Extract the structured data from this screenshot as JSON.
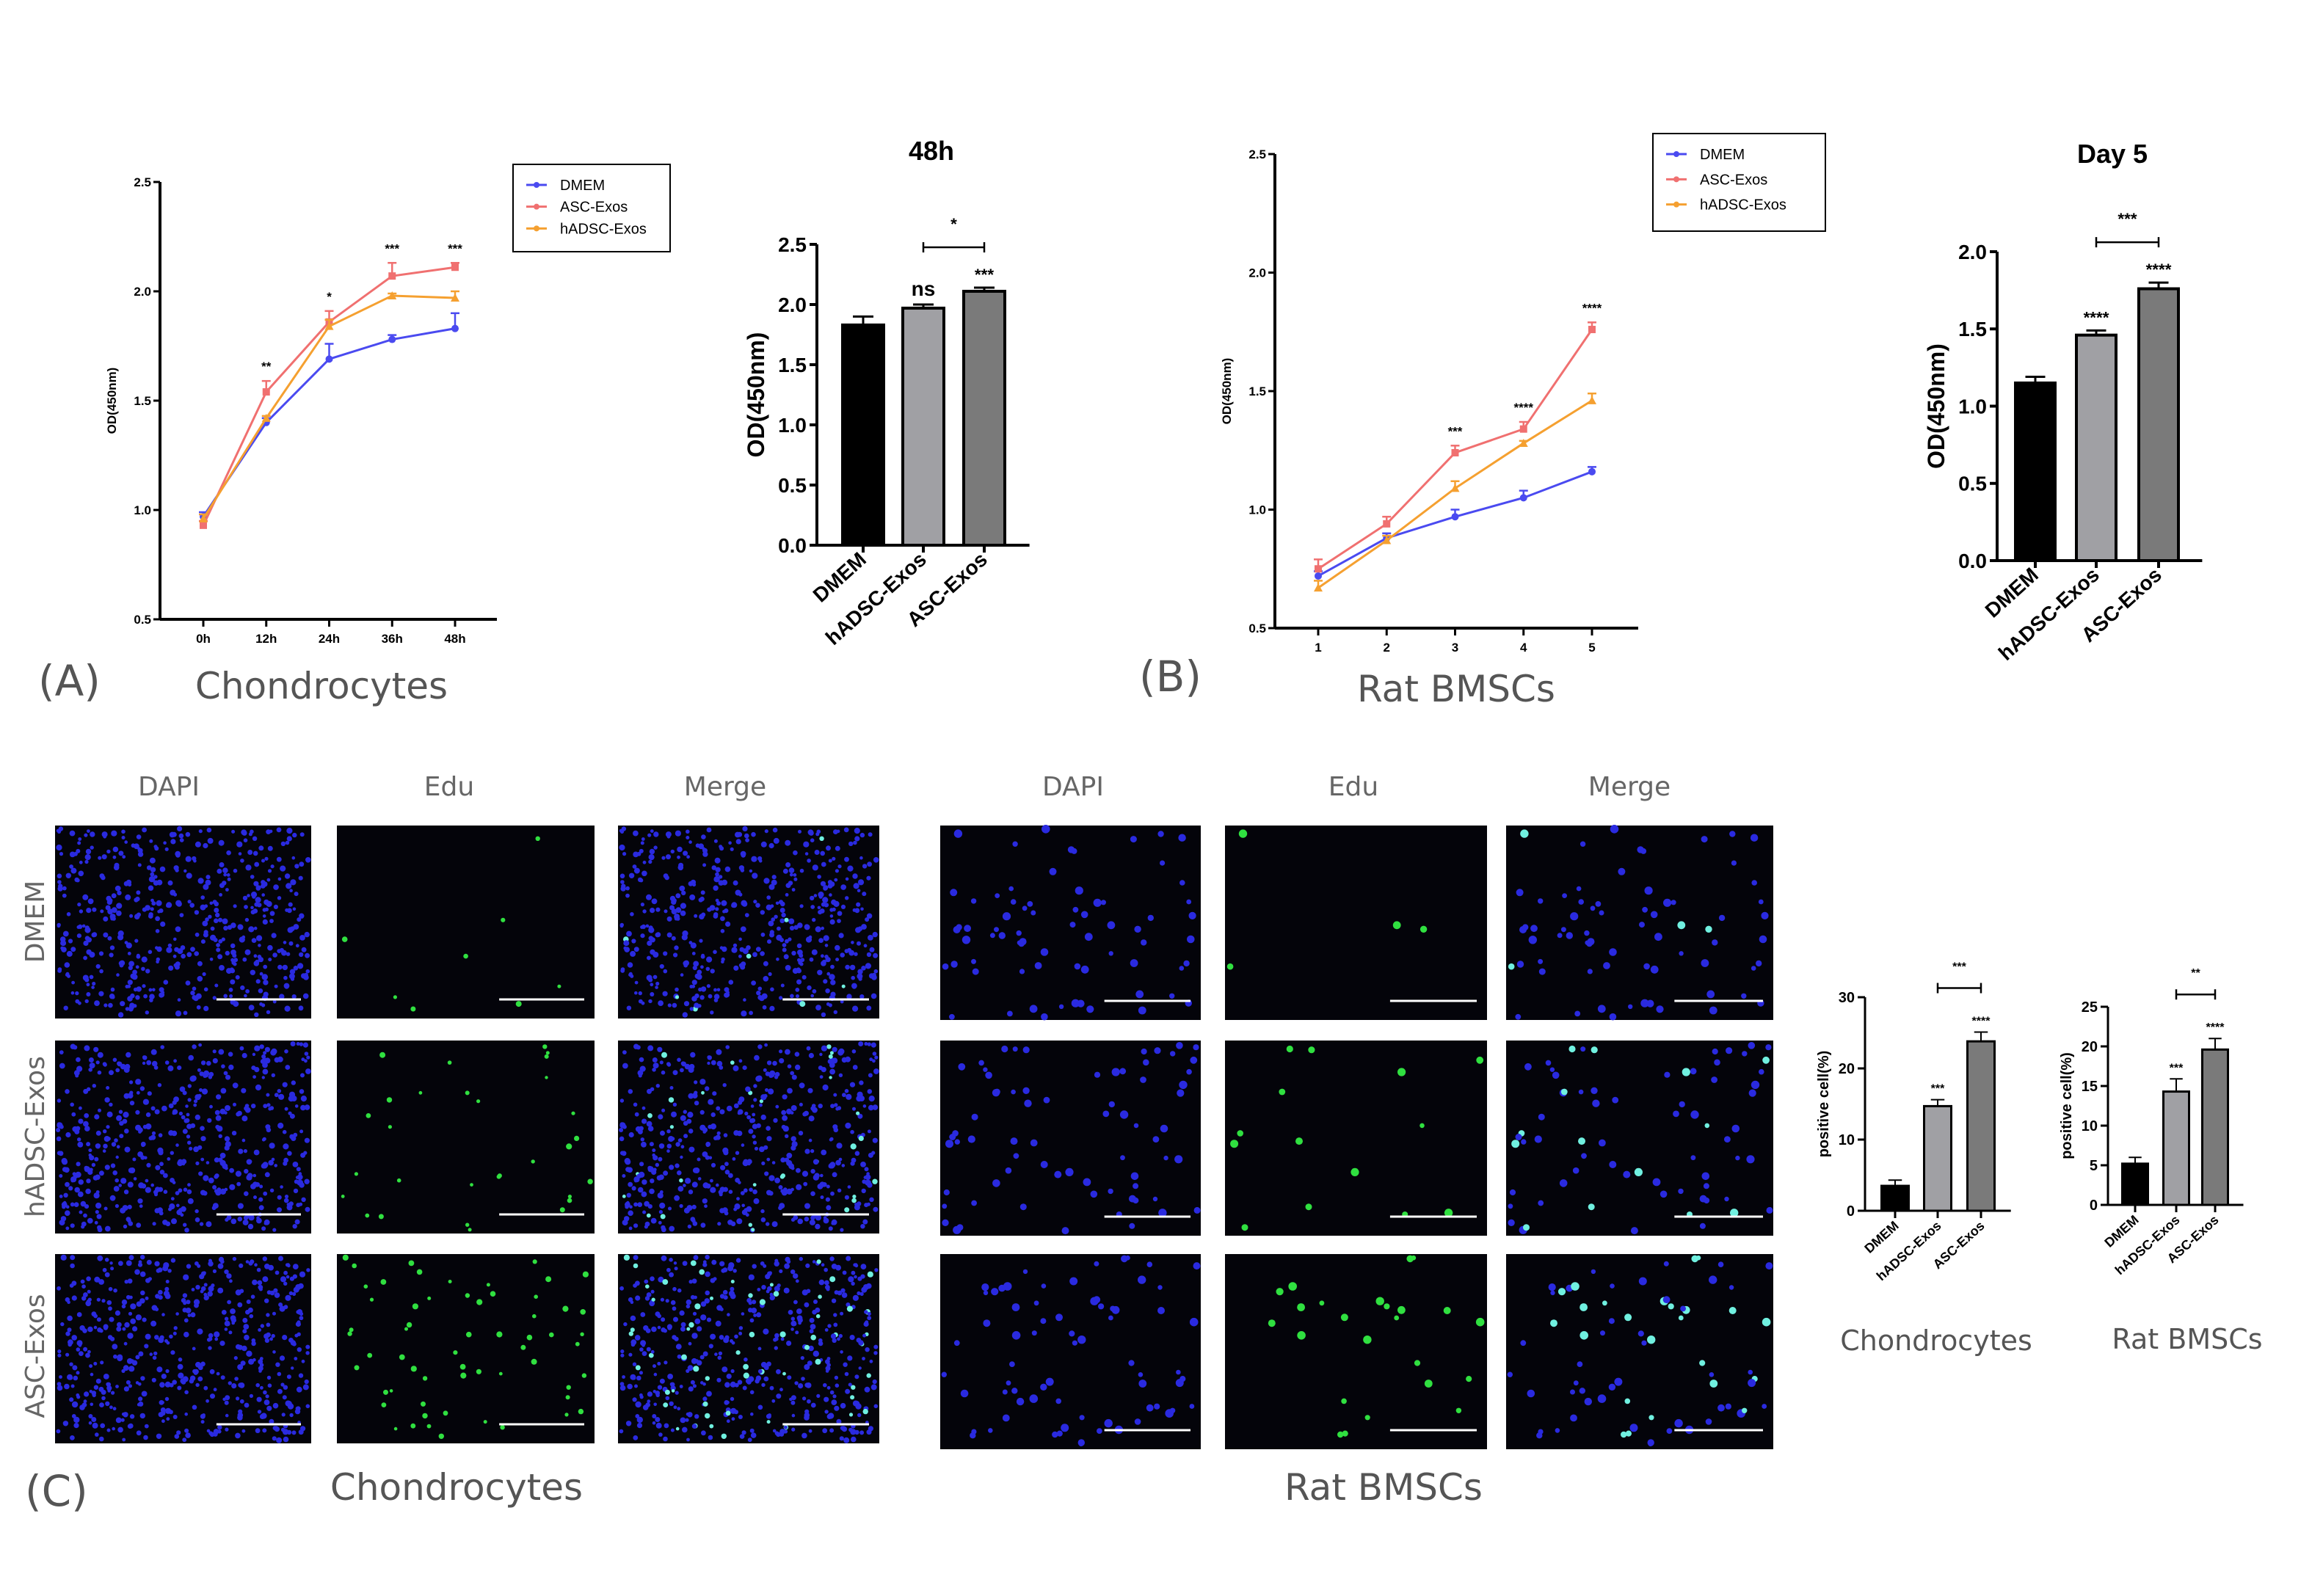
{
  "figure": {
    "panel_labels": [
      "(A)",
      "(B)",
      "(C)"
    ],
    "subtitles": {
      "a": "Chondrocytes",
      "b": "Rat BMSCs",
      "c_left": "Chondrocytes",
      "c_right": "Rat BMSCs",
      "c_bar_left": "Chondrocytes",
      "c_bar_right": "Rat BMSCs"
    },
    "column_headers": [
      "DAPI",
      "Edu",
      "Merge"
    ],
    "row_labels": [
      "DMEM",
      "hADSC-Exos",
      "ASC-Exos"
    ]
  },
  "chart_data": [
    {
      "type": "line",
      "xlabel": "",
      "ylabel": "OD(450nm)",
      "x": [
        "0h",
        "12h",
        "24h",
        "36h",
        "48h"
      ],
      "ylim": [
        0.5,
        2.5
      ],
      "yticks": [
        0.5,
        1.0,
        1.5,
        2.0,
        2.5
      ],
      "ytick_labels": [
        "0.5",
        "1.0",
        "1.5",
        "2.0",
        "2.5"
      ],
      "legend_position": "top-right",
      "series": [
        {
          "name": "DMEM",
          "color": "#4a4af0",
          "marker": "circle",
          "values": [
            0.97,
            1.4,
            1.69,
            1.78,
            1.83
          ],
          "errors": [
            0.02,
            0.02,
            0.07,
            0.02,
            0.07
          ]
        },
        {
          "name": "ASC-Exos",
          "color": "#f07070",
          "marker": "square",
          "values": [
            0.93,
            1.54,
            1.86,
            2.07,
            2.11
          ],
          "errors": [
            0.02,
            0.05,
            0.05,
            0.06,
            0.02
          ]
        },
        {
          "name": "hADSC-Exos",
          "color": "#f5a030",
          "marker": "triangle",
          "values": [
            0.96,
            1.42,
            1.84,
            1.98,
            1.97
          ],
          "errors": [
            0.02,
            0.01,
            0.03,
            0.01,
            0.03
          ]
        }
      ],
      "significance": [
        "",
        "**",
        "*",
        "***",
        "***"
      ]
    },
    {
      "type": "bar",
      "title": "48h",
      "ylabel": "OD(450nm)",
      "categories": [
        "DMEM",
        "hADSC-Exos",
        "ASC-Exos"
      ],
      "values": [
        1.83,
        1.97,
        2.11
      ],
      "errors": [
        0.07,
        0.03,
        0.03
      ],
      "colors": [
        "#000000",
        "#a0a0a4",
        "#7a7a7a"
      ],
      "ylim": [
        0,
        2.5
      ],
      "yticks": [
        0,
        0.5,
        1.0,
        1.5,
        2.0,
        2.5
      ],
      "ytick_labels": [
        "0.0",
        "0.5",
        "1.0",
        "1.5",
        "2.0",
        "2.5"
      ],
      "significance": [
        "",
        "ns",
        "***"
      ],
      "bracket": {
        "from": 1,
        "to": 2,
        "label": "*"
      }
    },
    {
      "type": "line",
      "xlabel": "",
      "ylabel": "OD(450nm)",
      "x": [
        "1",
        "2",
        "3",
        "4",
        "5"
      ],
      "ylim": [
        0.5,
        2.5
      ],
      "yticks": [
        0.5,
        1.0,
        1.5,
        2.0,
        2.5
      ],
      "ytick_labels": [
        "0.5",
        "1.0",
        "1.5",
        "2.0",
        "2.5"
      ],
      "legend_position": "top-right",
      "series": [
        {
          "name": "DMEM",
          "color": "#4a4af0",
          "marker": "circle",
          "values": [
            0.72,
            0.88,
            0.97,
            1.05,
            1.16
          ],
          "errors": [
            0.02,
            0.02,
            0.03,
            0.03,
            0.02
          ]
        },
        {
          "name": "ASC-Exos",
          "color": "#f07070",
          "marker": "square",
          "values": [
            0.75,
            0.94,
            1.24,
            1.34,
            1.76
          ],
          "errors": [
            0.04,
            0.03,
            0.03,
            0.03,
            0.03
          ]
        },
        {
          "name": "hADSC-Exos",
          "color": "#f5a030",
          "marker": "triangle",
          "values": [
            0.67,
            0.87,
            1.09,
            1.28,
            1.46
          ],
          "errors": [
            0.03,
            0.02,
            0.03,
            0.01,
            0.03
          ]
        }
      ],
      "significance": [
        "",
        "",
        "***",
        "****",
        "****"
      ]
    },
    {
      "type": "bar",
      "title": "Day 5",
      "ylabel": "OD(450nm)",
      "categories": [
        "DMEM",
        "hADSC-Exos",
        "ASC-Exos"
      ],
      "values": [
        1.15,
        1.46,
        1.76
      ],
      "errors": [
        0.04,
        0.03,
        0.04
      ],
      "colors": [
        "#000000",
        "#a0a0a4",
        "#7a7a7a"
      ],
      "ylim": [
        0,
        2.0
      ],
      "yticks": [
        0,
        0.5,
        1.0,
        1.5,
        2.0
      ],
      "ytick_labels": [
        "0.0",
        "0.5",
        "1.0",
        "1.5",
        "2.0"
      ],
      "significance": [
        "",
        "****",
        "****"
      ],
      "bracket": {
        "from": 1,
        "to": 2,
        "label": "***"
      }
    },
    {
      "type": "bar",
      "title": "",
      "ylabel": "positive cell(%)",
      "categories": [
        "DMEM",
        "hADSC-Exos",
        "ASC-Exos"
      ],
      "values": [
        3.5,
        14.7,
        23.8
      ],
      "errors": [
        0.8,
        0.9,
        1.3
      ],
      "colors": [
        "#000000",
        "#a0a0a4",
        "#7a7a7a"
      ],
      "ylim": [
        0,
        30
      ],
      "yticks": [
        0,
        10,
        20,
        30
      ],
      "ytick_labels": [
        "0",
        "10",
        "20",
        "30"
      ],
      "significance": [
        "",
        "***",
        "****"
      ],
      "bracket": {
        "from": 1,
        "to": 2,
        "label": "***"
      }
    },
    {
      "type": "bar",
      "title": "",
      "ylabel": "positive cell(%)",
      "categories": [
        "DMEM",
        "hADSC-Exos",
        "ASC-Exos"
      ],
      "values": [
        5.2,
        14.3,
        19.6
      ],
      "errors": [
        0.8,
        1.6,
        1.4
      ],
      "colors": [
        "#000000",
        "#a0a0a4",
        "#7a7a7a"
      ],
      "ylim": [
        0,
        25
      ],
      "yticks": [
        0,
        5,
        10,
        15,
        20,
        25
      ],
      "ytick_labels": [
        "0",
        "5",
        "10",
        "15",
        "20",
        "25"
      ],
      "significance": [
        "",
        "***",
        "****"
      ],
      "bracket": {
        "from": 1,
        "to": 2,
        "label": "**"
      }
    }
  ]
}
